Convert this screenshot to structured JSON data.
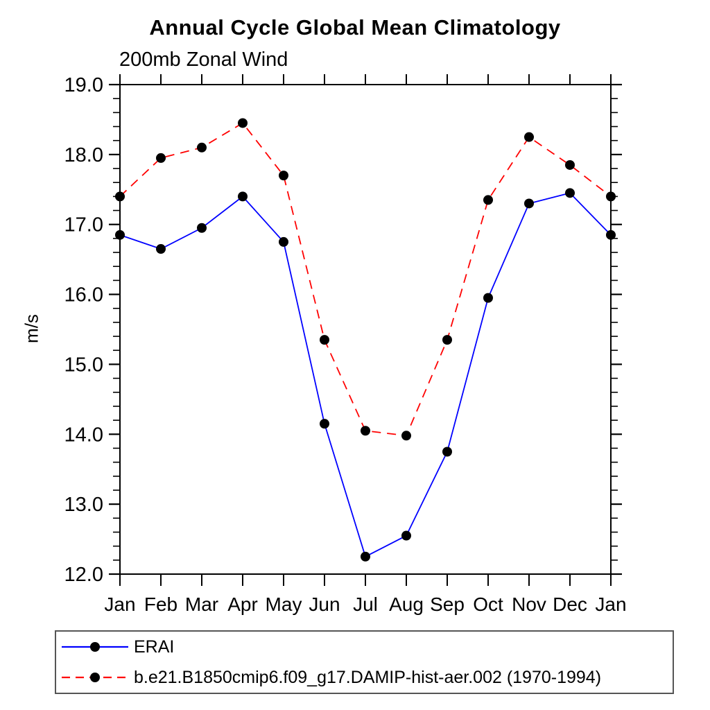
{
  "chart_data": {
    "type": "line",
    "title": "Annual Cycle Global Mean Climatology",
    "subtitle": "200mb Zonal Wind",
    "ylabel": "m/s",
    "xlabel": "",
    "categories": [
      "Jan",
      "Feb",
      "Mar",
      "Apr",
      "May",
      "Jun",
      "Jul",
      "Aug",
      "Sep",
      "Oct",
      "Nov",
      "Dec",
      "Jan"
    ],
    "ylim": [
      12.0,
      19.0
    ],
    "ytick_major_interval": 1.0,
    "ytick_minor_interval": 0.2,
    "grid": false,
    "legend_position": "bottom-left",
    "frame_color": "#000000",
    "series": [
      {
        "name": "ERAI",
        "color": "#0000ff",
        "line_style": "solid",
        "marker": "filled-circle",
        "marker_color": "#000000",
        "values": [
          16.85,
          16.65,
          16.95,
          17.4,
          16.75,
          14.15,
          12.25,
          12.55,
          13.75,
          15.95,
          17.3,
          17.45,
          16.85
        ]
      },
      {
        "name": "b.e21.B1850cmip6.f09_g17.DAMIP-hist-aer.002 (1970-1994)",
        "color": "#ff0000",
        "line_style": "dashed",
        "marker": "filled-circle",
        "marker_color": "#000000",
        "values": [
          17.4,
          17.95,
          18.1,
          18.45,
          17.7,
          15.35,
          14.05,
          13.98,
          15.35,
          17.35,
          18.25,
          17.85,
          17.4
        ]
      }
    ]
  }
}
